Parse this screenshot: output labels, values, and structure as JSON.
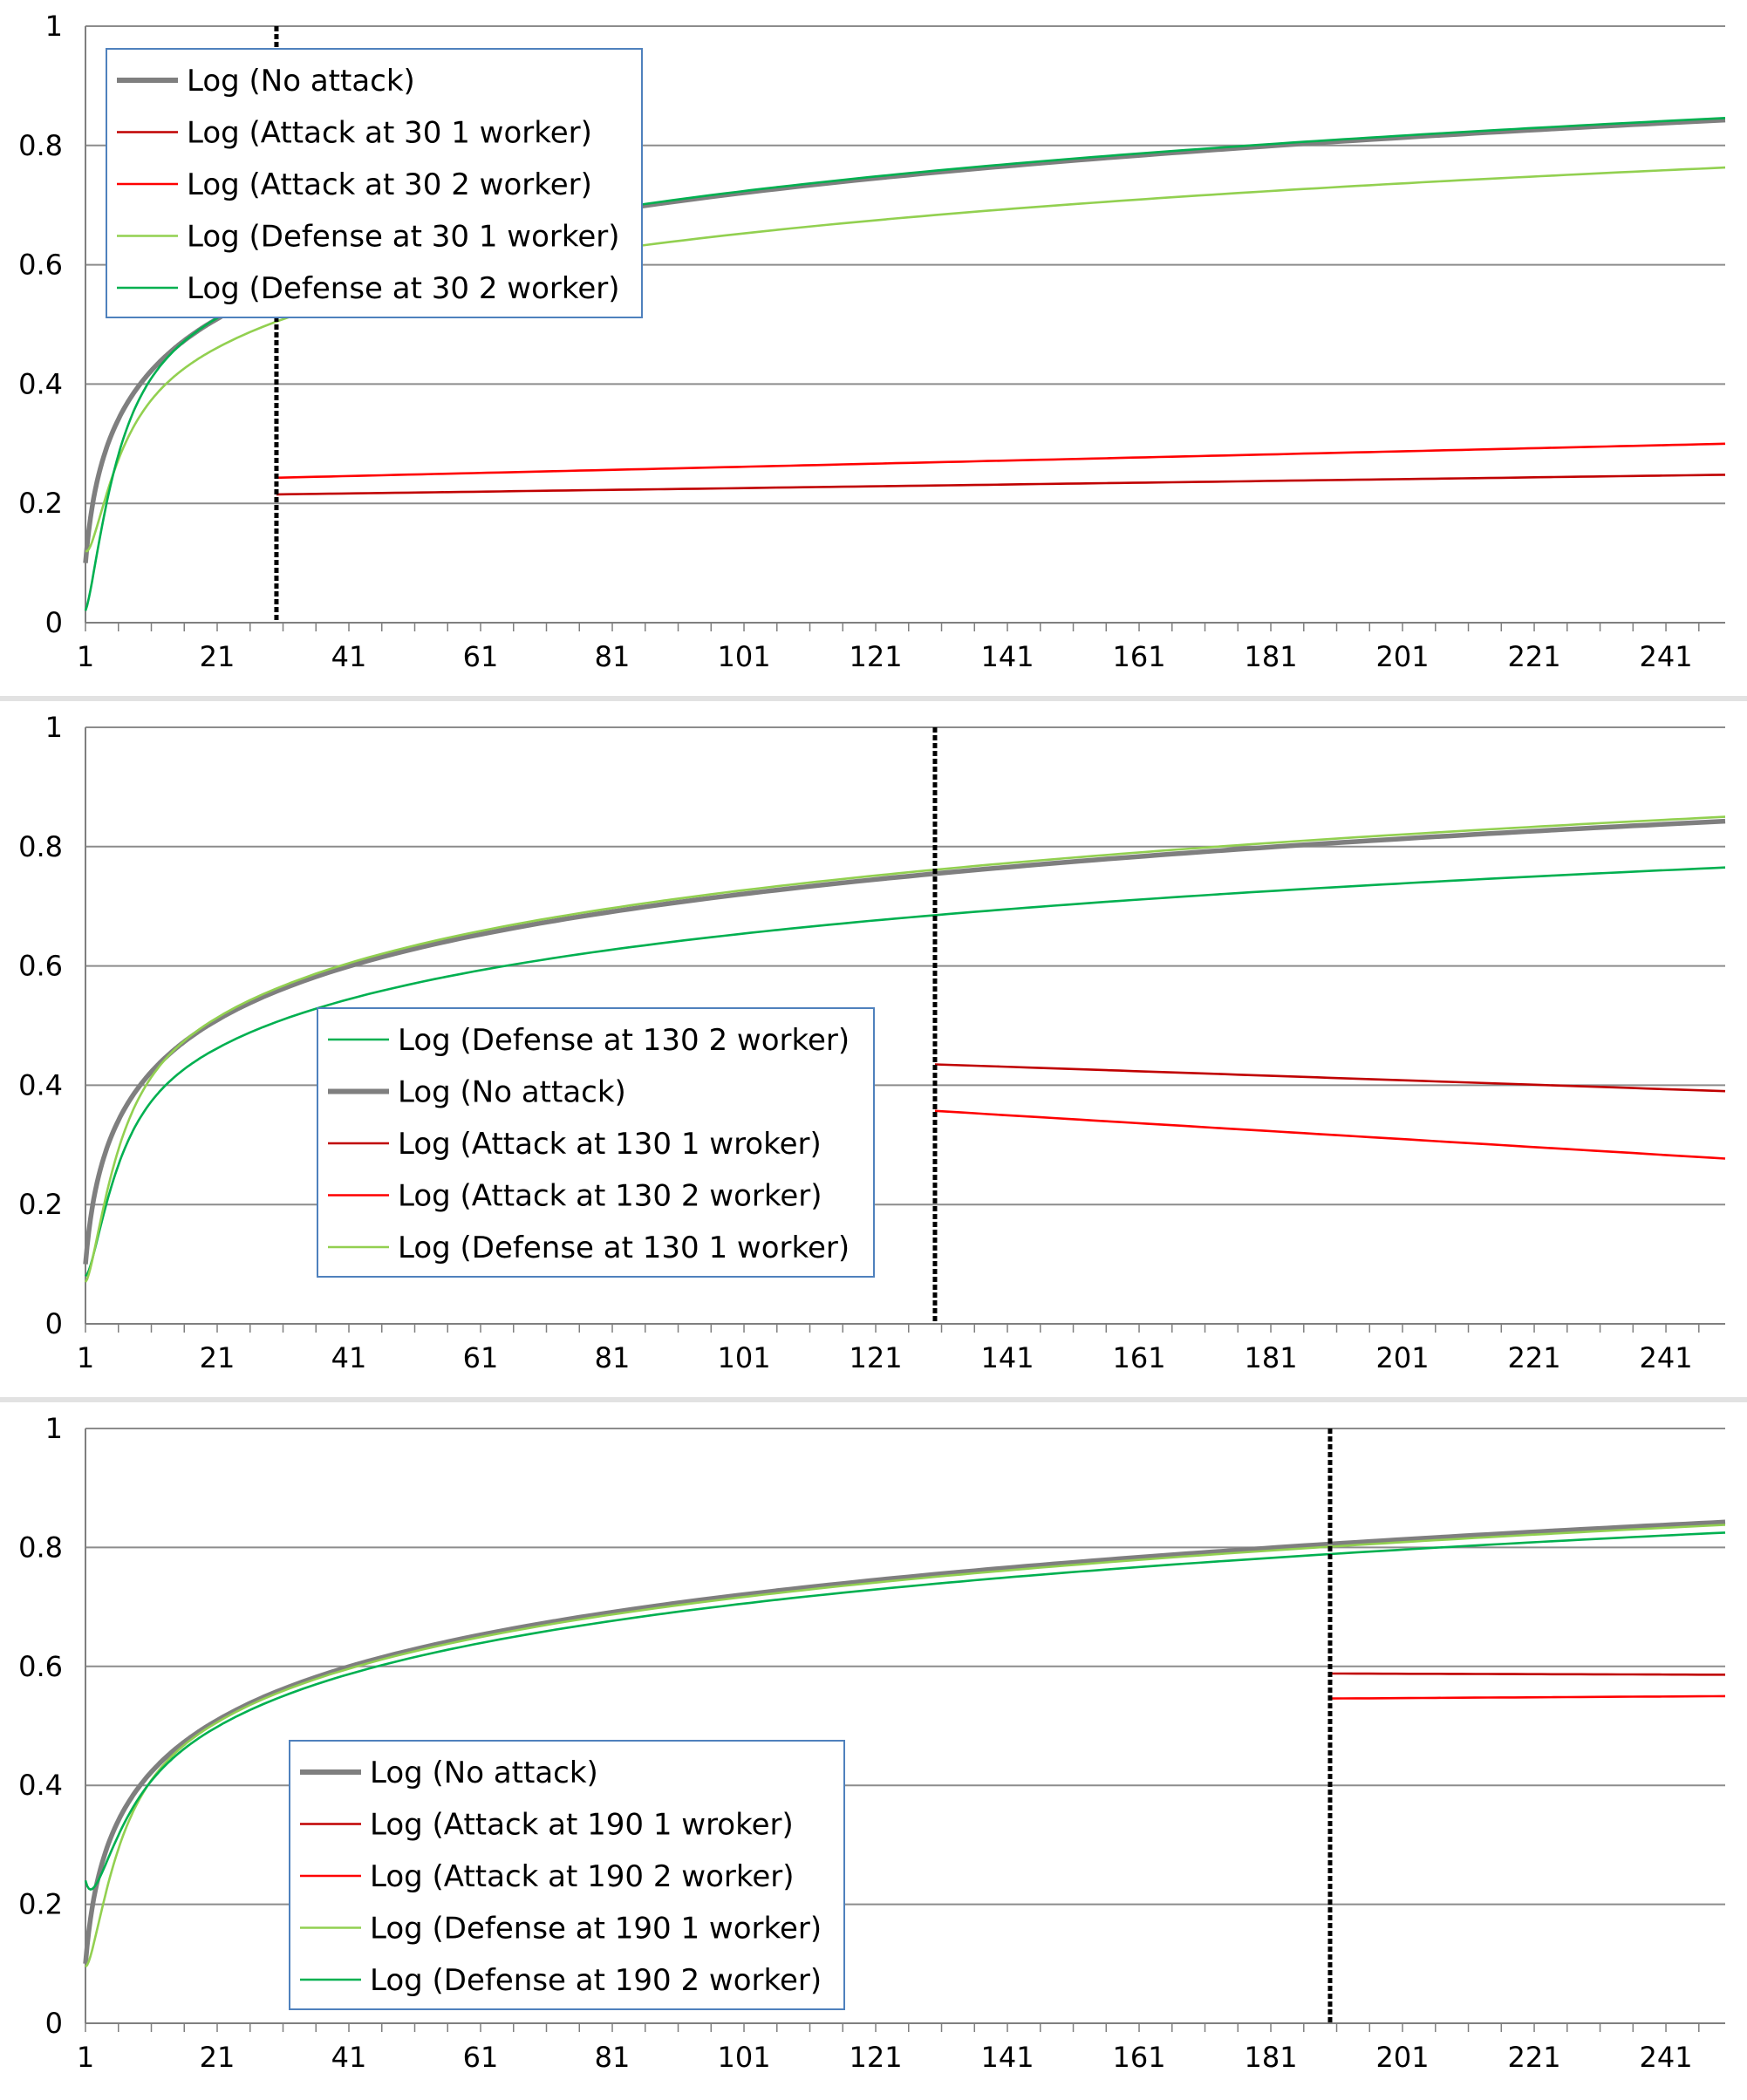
{
  "chart_data": [
    {
      "type": "line",
      "title": "",
      "xlabel": "",
      "ylabel": "",
      "xlim": [
        1,
        250
      ],
      "ylim": [
        0,
        1
      ],
      "x_ticks": [
        "1",
        "21",
        "41",
        "61",
        "81",
        "101",
        "121",
        "141",
        "161",
        "181",
        "201",
        "221",
        "241"
      ],
      "y_ticks": [
        "0",
        "0.2",
        "0.4",
        "0.6",
        "0.8",
        "1"
      ],
      "event_x": 30,
      "legend_position": "top-left",
      "series": [
        {
          "name": "Log (No attack)",
          "color": "#7f7f7f",
          "role": "baseline",
          "start": 1,
          "end_value": 0.842
        },
        {
          "name": "Log (Attack at 30 1 worker)",
          "color": "#c00000",
          "role": "attack",
          "start": 30,
          "y_start": 0.215,
          "y_end": 0.248
        },
        {
          "name": "Log (Attack at 30 2 worker)",
          "color": "#ff0000",
          "role": "attack",
          "start": 30,
          "y_start": 0.243,
          "y_end": 0.3
        },
        {
          "name": "Log (Defense at 30 1 worker)",
          "color": "#92d050",
          "role": "defense",
          "start": 1,
          "y_start": 0.12,
          "end_value": 0.763
        },
        {
          "name": "Log (Defense at 30 2 worker)",
          "color": "#00b050",
          "role": "defense",
          "start": 1,
          "y_start": 0.02,
          "end_value": 0.846
        }
      ]
    },
    {
      "type": "line",
      "title": "",
      "xlabel": "",
      "ylabel": "",
      "xlim": [
        1,
        250
      ],
      "ylim": [
        0,
        1
      ],
      "x_ticks": [
        "1",
        "21",
        "41",
        "61",
        "81",
        "101",
        "121",
        "141",
        "161",
        "181",
        "201",
        "221",
        "241"
      ],
      "y_ticks": [
        "0",
        "0.2",
        "0.4",
        "0.6",
        "0.8",
        "1"
      ],
      "event_x": 130,
      "legend_position": "center-left",
      "series": [
        {
          "name": "Log (Defense at 130 2 worker)",
          "color": "#00b050",
          "role": "defense",
          "start": 1,
          "y_start": 0.08,
          "end_value": 0.765
        },
        {
          "name": "Log (No attack)",
          "color": "#7f7f7f",
          "role": "baseline",
          "start": 1,
          "end_value": 0.842
        },
        {
          "name": "Log (Attack at 130 1 wroker)",
          "color": "#c00000",
          "role": "attack",
          "start": 130,
          "y_start": 0.435,
          "y_end": 0.39
        },
        {
          "name": "Log (Attack at 130 2 worker)",
          "color": "#ff0000",
          "role": "attack",
          "start": 130,
          "y_start": 0.357,
          "y_end": 0.277
        },
        {
          "name": "Log (Defense at 130 1 worker)",
          "color": "#92d050",
          "role": "defense",
          "start": 1,
          "y_start": 0.07,
          "end_value": 0.85
        }
      ]
    },
    {
      "type": "line",
      "title": "",
      "xlabel": "",
      "ylabel": "",
      "xlim": [
        1,
        250
      ],
      "ylim": [
        0,
        1
      ],
      "x_ticks": [
        "1",
        "21",
        "41",
        "61",
        "81",
        "101",
        "121",
        "141",
        "161",
        "181",
        "201",
        "221",
        "241"
      ],
      "y_ticks": [
        "0",
        "0.2",
        "0.4",
        "0.6",
        "0.8",
        "1"
      ],
      "event_x": 190,
      "legend_position": "bottom-left",
      "series": [
        {
          "name": "Log (No attack)",
          "color": "#7f7f7f",
          "role": "baseline",
          "start": 1,
          "end_value": 0.842
        },
        {
          "name": "Log (Attack at 190 1 wroker)",
          "color": "#c00000",
          "role": "attack",
          "start": 190,
          "y_start": 0.588,
          "y_end": 0.586
        },
        {
          "name": "Log (Attack at 190 2 worker)",
          "color": "#ff0000",
          "role": "attack",
          "start": 190,
          "y_start": 0.546,
          "y_end": 0.55
        },
        {
          "name": "Log (Defense at 190 1 worker)",
          "color": "#92d050",
          "role": "defense",
          "start": 1,
          "y_start": 0.095,
          "end_value": 0.838
        },
        {
          "name": "Log (Defense at 190 2 worker)",
          "color": "#00b050",
          "role": "defense",
          "start": 1,
          "y_start": 0.24,
          "end_value": 0.825
        }
      ]
    }
  ]
}
